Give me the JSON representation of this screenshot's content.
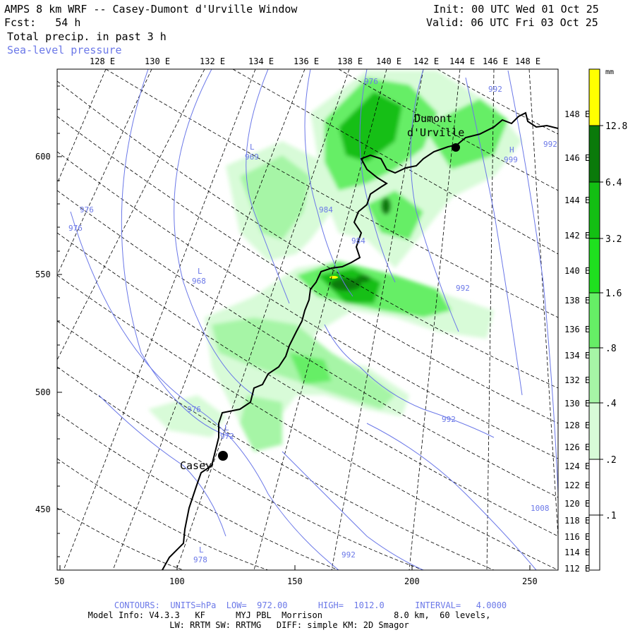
{
  "header": {
    "title": "AMPS 8 km WRF -- Casey-Dumont d'Urville Window",
    "fcst": "Fcst:   54 h",
    "field": "Total precip. in past 3 h",
    "overlay": "Sea-level pressure",
    "init": "Init: 00 UTC Wed 01 Oct 25",
    "valid": "Valid: 06 UTC Fri 03 Oct 25"
  },
  "axes": {
    "top_lon": [
      "128 E",
      "130 E",
      "132 E",
      "134 E",
      "136 E",
      "138 E",
      "140 E",
      "142 E",
      "144 E",
      "146 E",
      "148 E"
    ],
    "right_lon": [
      "148 E",
      "146 E",
      "144 E",
      "142 E",
      "140 E",
      "138 E",
      "136 E",
      "134 E",
      "132 E",
      "130 E",
      "128 E",
      "126 E",
      "124 E",
      "122 E",
      "120 E",
      "118 E",
      "116 E",
      "114 E",
      "112 E"
    ],
    "left_y": [
      "600",
      "550",
      "500",
      "450"
    ],
    "bottom_x": [
      "50",
      "100",
      "150",
      "200",
      "250"
    ]
  },
  "colorbar": {
    "unit": "mm",
    "levels": [
      "12.8",
      "6.4",
      "3.2",
      "1.6",
      ".8",
      ".4",
      ".2",
      ".1"
    ],
    "colors": [
      "#ffff00",
      "#0a7a0a",
      "#13bf13",
      "#1fe01f",
      "#66ee66",
      "#a6f5a6",
      "#d8fbd8",
      "#ffffff"
    ]
  },
  "stations": [
    {
      "name_line1": "Dumont",
      "name_line2": "d'Urville"
    },
    {
      "name_line1": "Casey"
    }
  ],
  "pressure_labels": {
    "low1": "L",
    "low1_val": "969",
    "low2": "L",
    "low2_val": "968",
    "low3": "L",
    "low3_val": "972",
    "low4": "L",
    "low4_val": "978",
    "high1": "H",
    "high1_val": "999",
    "iso": [
      "976",
      "976",
      "976",
      "976",
      "984",
      "984",
      "992",
      "992",
      "992",
      "992",
      "1008",
      "992"
    ]
  },
  "footer": {
    "contours": "CONTOURS:  UNITS=hPa  LOW=  972.00      HIGH=  1012.0      INTERVAL=   4.0000",
    "model": "Model Info: V4.3.3   KF      MYJ PBL  Morrison              8.0 km,  60 levels,",
    "physics": "LW: RRTM SW: RRTMG   DIFF: simple KM: 2D Smagor"
  }
}
